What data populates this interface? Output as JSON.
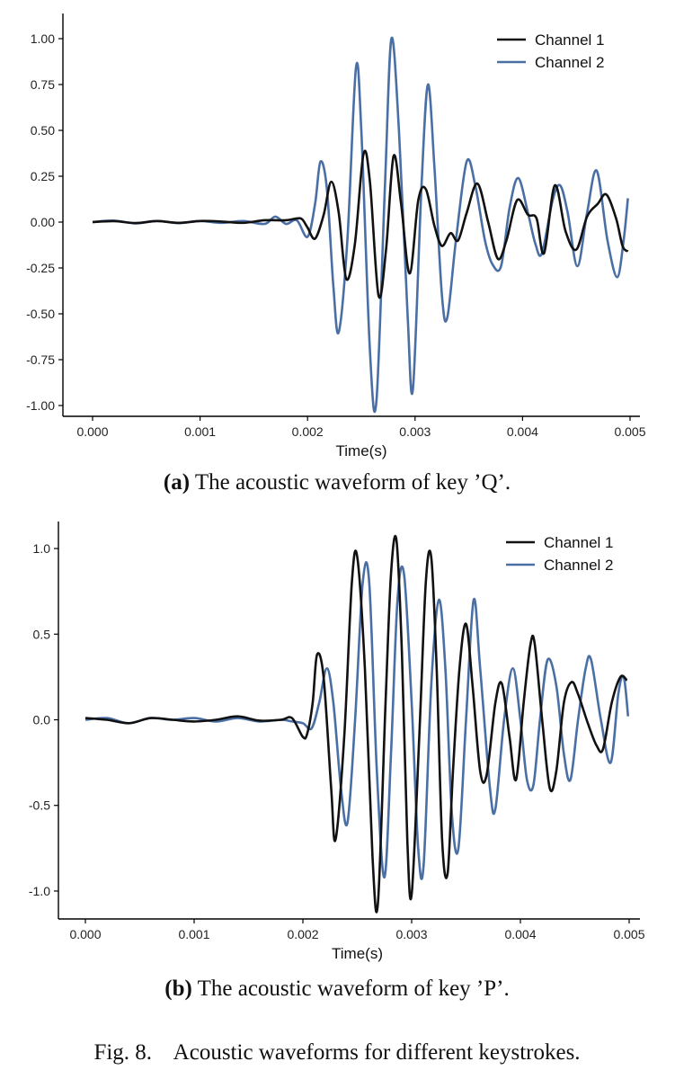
{
  "figure_caption": "Fig. 8.    Acoustic waveforms for different keystrokes.",
  "colors": {
    "channel1": "#111111",
    "channel2": "#4a6fa5"
  },
  "chart_data": [
    {
      "type": "line",
      "caption_prefix": "(a)",
      "caption_text": " The acoustic waveform of key ’Q’.",
      "xlabel": "Time(s)",
      "ylabel": "",
      "xlim": [
        0.0,
        0.005
      ],
      "ylim": [
        -1.0,
        1.0
      ],
      "xticks": [
        0.0,
        0.001,
        0.002,
        0.003,
        0.004,
        0.005
      ],
      "xtick_labels": [
        "0.000",
        "0.001",
        "0.002",
        "0.003",
        "0.004",
        "0.005"
      ],
      "yticks": [
        1.0,
        0.75,
        0.5,
        0.25,
        0.0,
        -0.25,
        -0.5,
        -0.75,
        -1.0
      ],
      "ytick_labels": [
        "1.00",
        "0.75",
        "0.50",
        "0.25",
        "0.00",
        "-0.25",
        "-0.50",
        "-0.75",
        "-1.00"
      ],
      "legend_position": "top-right",
      "grid": false,
      "series": [
        {
          "name": "Channel 1",
          "color": "#111111",
          "points": [
            [
              0.0,
              0.0
            ],
            [
              0.0002,
              0.005
            ],
            [
              0.0004,
              -0.005
            ],
            [
              0.0006,
              0.006
            ],
            [
              0.0008,
              -0.004
            ],
            [
              0.001,
              0.006
            ],
            [
              0.0012,
              0.003
            ],
            [
              0.0014,
              -0.004
            ],
            [
              0.0016,
              0.01
            ],
            [
              0.0018,
              0.01
            ],
            [
              0.0019,
              0.02
            ],
            [
              0.00195,
              0.015
            ],
            [
              0.002,
              -0.03
            ],
            [
              0.00207,
              -0.09
            ],
            [
              0.00215,
              0.04
            ],
            [
              0.00222,
              0.22
            ],
            [
              0.00229,
              0.05
            ],
            [
              0.00236,
              -0.31
            ],
            [
              0.00244,
              -0.12
            ],
            [
              0.00252,
              0.37
            ],
            [
              0.00258,
              0.22
            ],
            [
              0.00266,
              -0.4
            ],
            [
              0.00273,
              -0.15
            ],
            [
              0.0028,
              0.36
            ],
            [
              0.00287,
              0.1
            ],
            [
              0.00295,
              -0.28
            ],
            [
              0.00303,
              0.12
            ],
            [
              0.0031,
              0.18
            ],
            [
              0.00318,
              -0.02
            ],
            [
              0.00325,
              -0.13
            ],
            [
              0.00333,
              -0.06
            ],
            [
              0.0034,
              -0.1
            ],
            [
              0.00348,
              0.05
            ],
            [
              0.00358,
              0.21
            ],
            [
              0.00368,
              0.0
            ],
            [
              0.00377,
              -0.2
            ],
            [
              0.00385,
              -0.1
            ],
            [
              0.00395,
              0.12
            ],
            [
              0.00405,
              0.04
            ],
            [
              0.00413,
              0.02
            ],
            [
              0.0042,
              -0.17
            ],
            [
              0.0043,
              0.2
            ],
            [
              0.0044,
              -0.05
            ],
            [
              0.0045,
              -0.15
            ],
            [
              0.0046,
              0.03
            ],
            [
              0.0047,
              0.1
            ],
            [
              0.00478,
              0.15
            ],
            [
              0.00487,
              0.02
            ],
            [
              0.00493,
              -0.13
            ],
            [
              0.00498,
              -0.16
            ]
          ]
        },
        {
          "name": "Channel 2",
          "color": "#4a6fa5",
          "points": [
            [
              0.0,
              0.0
            ],
            [
              0.0002,
              0.008
            ],
            [
              0.0004,
              -0.007
            ],
            [
              0.0006,
              0.006
            ],
            [
              0.0008,
              -0.006
            ],
            [
              0.001,
              0.006
            ],
            [
              0.0012,
              -0.004
            ],
            [
              0.0014,
              0.006
            ],
            [
              0.0016,
              -0.01
            ],
            [
              0.0017,
              0.03
            ],
            [
              0.0018,
              -0.01
            ],
            [
              0.0019,
              0.01
            ],
            [
              0.002,
              -0.08
            ],
            [
              0.00207,
              0.1
            ],
            [
              0.00212,
              0.33
            ],
            [
              0.00218,
              0.18
            ],
            [
              0.00224,
              -0.35
            ],
            [
              0.00229,
              -0.6
            ],
            [
              0.00237,
              -0.1
            ],
            [
              0.00245,
              0.84
            ],
            [
              0.0025,
              0.5
            ],
            [
              0.00258,
              -0.7
            ],
            [
              0.00264,
              -0.98
            ],
            [
              0.00272,
              0.2
            ],
            [
              0.00278,
              1.0
            ],
            [
              0.00285,
              0.5
            ],
            [
              0.00293,
              -0.5
            ],
            [
              0.00298,
              -0.91
            ],
            [
              0.00306,
              0.2
            ],
            [
              0.00312,
              0.75
            ],
            [
              0.00318,
              0.3
            ],
            [
              0.00325,
              -0.4
            ],
            [
              0.0033,
              -0.52
            ],
            [
              0.00338,
              -0.1
            ],
            [
              0.00348,
              0.33
            ],
            [
              0.00356,
              0.2
            ],
            [
              0.00365,
              -0.1
            ],
            [
              0.00372,
              -0.23
            ],
            [
              0.0038,
              -0.24
            ],
            [
              0.00388,
              0.08
            ],
            [
              0.00396,
              0.24
            ],
            [
              0.00405,
              0.05
            ],
            [
              0.00412,
              -0.12
            ],
            [
              0.00418,
              -0.17
            ],
            [
              0.00428,
              0.12
            ],
            [
              0.00435,
              0.2
            ],
            [
              0.00442,
              0.05
            ],
            [
              0.00451,
              -0.24
            ],
            [
              0.0046,
              0.05
            ],
            [
              0.00469,
              0.28
            ],
            [
              0.00479,
              -0.1
            ],
            [
              0.00488,
              -0.3
            ],
            [
              0.00494,
              -0.1
            ],
            [
              0.00498,
              0.13
            ]
          ]
        }
      ]
    },
    {
      "type": "line",
      "caption_prefix": "(b)",
      "caption_text": " The acoustic waveform of key ’P’.",
      "xlabel": "Time(s)",
      "ylabel": "",
      "xlim": [
        0.0,
        0.005
      ],
      "ylim": [
        -1.1,
        1.1
      ],
      "xticks": [
        0.0,
        0.001,
        0.002,
        0.003,
        0.004,
        0.005
      ],
      "xtick_labels": [
        "0.000",
        "0.001",
        "0.002",
        "0.003",
        "0.004",
        "0.005"
      ],
      "yticks": [
        1.0,
        0.5,
        0.0,
        -0.5,
        -1.0
      ],
      "ytick_labels": [
        "1.0",
        "0.5",
        "0.0",
        "-0.5",
        "-1.0"
      ],
      "legend_position": "top-right",
      "grid": false,
      "series": [
        {
          "name": "Channel 1",
          "color": "#111111",
          "points": [
            [
              0.0,
              0.01
            ],
            [
              0.0002,
              0.0
            ],
            [
              0.0004,
              -0.02
            ],
            [
              0.0006,
              0.01
            ],
            [
              0.0008,
              0.0
            ],
            [
              0.001,
              -0.01
            ],
            [
              0.0012,
              0.0
            ],
            [
              0.0014,
              0.02
            ],
            [
              0.0016,
              -0.005
            ],
            [
              0.0018,
              0.0
            ],
            [
              0.0019,
              0.01
            ],
            [
              0.002,
              -0.1
            ],
            [
              0.00204,
              -0.08
            ],
            [
              0.00209,
              0.1
            ],
            [
              0.00213,
              0.38
            ],
            [
              0.00219,
              0.25
            ],
            [
              0.00226,
              -0.4
            ],
            [
              0.0023,
              -0.7
            ],
            [
              0.00238,
              -0.1
            ],
            [
              0.00245,
              0.8
            ],
            [
              0.0025,
              0.95
            ],
            [
              0.00257,
              0.3
            ],
            [
              0.00264,
              -0.8
            ],
            [
              0.00269,
              -1.07
            ],
            [
              0.00276,
              0.1
            ],
            [
              0.00281,
              0.85
            ],
            [
              0.00286,
              1.05
            ],
            [
              0.00291,
              0.4
            ],
            [
              0.00296,
              -0.7
            ],
            [
              0.003,
              -1.02
            ],
            [
              0.00307,
              -0.1
            ],
            [
              0.00313,
              0.8
            ],
            [
              0.00318,
              0.95
            ],
            [
              0.00323,
              0.3
            ],
            [
              0.00328,
              -0.7
            ],
            [
              0.00333,
              -0.9
            ],
            [
              0.00338,
              -0.3
            ],
            [
              0.00344,
              0.3
            ],
            [
              0.0035,
              0.56
            ],
            [
              0.00356,
              0.2
            ],
            [
              0.00363,
              -0.3
            ],
            [
              0.00369,
              -0.32
            ],
            [
              0.00377,
              0.1
            ],
            [
              0.00383,
              0.21
            ],
            [
              0.0039,
              -0.1
            ],
            [
              0.00396,
              -0.35
            ],
            [
              0.00403,
              0.1
            ],
            [
              0.00409,
              0.43
            ],
            [
              0.00413,
              0.45
            ],
            [
              0.0042,
              0.0
            ],
            [
              0.00427,
              -0.4
            ],
            [
              0.00433,
              -0.3
            ],
            [
              0.0044,
              0.1
            ],
            [
              0.00447,
              0.22
            ],
            [
              0.00453,
              0.15
            ],
            [
              0.00462,
              -0.02
            ],
            [
              0.0047,
              -0.15
            ],
            [
              0.00476,
              -0.17
            ],
            [
              0.00484,
              0.1
            ],
            [
              0.00492,
              0.25
            ],
            [
              0.00498,
              0.23
            ]
          ]
        },
        {
          "name": "Channel 2",
          "color": "#4a6fa5",
          "points": [
            [
              0.0,
              0.0
            ],
            [
              0.0002,
              0.01
            ],
            [
              0.0004,
              -0.02
            ],
            [
              0.0006,
              0.01
            ],
            [
              0.0008,
              0.0
            ],
            [
              0.001,
              0.01
            ],
            [
              0.0012,
              -0.01
            ],
            [
              0.0014,
              0.01
            ],
            [
              0.0016,
              -0.01
            ],
            [
              0.0018,
              0.0
            ],
            [
              0.0019,
              -0.01
            ],
            [
              0.002,
              -0.02
            ],
            [
              0.00208,
              -0.05
            ],
            [
              0.00215,
              0.1
            ],
            [
              0.00222,
              0.3
            ],
            [
              0.00228,
              0.1
            ],
            [
              0.00235,
              -0.4
            ],
            [
              0.00241,
              -0.6
            ],
            [
              0.00248,
              0.0
            ],
            [
              0.00255,
              0.8
            ],
            [
              0.00261,
              0.8
            ],
            [
              0.00268,
              -0.3
            ],
            [
              0.00275,
              -0.92
            ],
            [
              0.00281,
              -0.2
            ],
            [
              0.00287,
              0.7
            ],
            [
              0.00293,
              0.85
            ],
            [
              0.003,
              0.1
            ],
            [
              0.00306,
              -0.75
            ],
            [
              0.00311,
              -0.85
            ],
            [
              0.00318,
              0.2
            ],
            [
              0.00325,
              0.7
            ],
            [
              0.00331,
              0.3
            ],
            [
              0.00337,
              -0.55
            ],
            [
              0.00343,
              -0.75
            ],
            [
              0.0035,
              0.0
            ],
            [
              0.00357,
              0.7
            ],
            [
              0.00363,
              0.3
            ],
            [
              0.00372,
              -0.4
            ],
            [
              0.00377,
              -0.52
            ],
            [
              0.00385,
              0.0
            ],
            [
              0.00393,
              0.3
            ],
            [
              0.004,
              0.0
            ],
            [
              0.00406,
              -0.35
            ],
            [
              0.00412,
              -0.38
            ],
            [
              0.00418,
              0.0
            ],
            [
              0.00425,
              0.35
            ],
            [
              0.00433,
              0.2
            ],
            [
              0.0044,
              -0.2
            ],
            [
              0.00446,
              -0.35
            ],
            [
              0.00453,
              0.0
            ],
            [
              0.0046,
              0.3
            ],
            [
              0.00465,
              0.35
            ],
            [
              0.00474,
              0.0
            ],
            [
              0.00483,
              -0.25
            ],
            [
              0.0049,
              0.15
            ],
            [
              0.00495,
              0.25
            ],
            [
              0.00499,
              0.02
            ]
          ]
        }
      ]
    }
  ]
}
